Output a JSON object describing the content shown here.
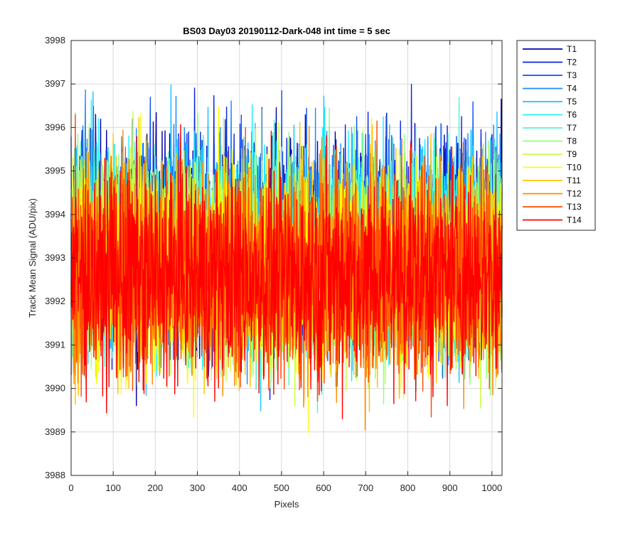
{
  "chart_data": {
    "type": "line",
    "title": "BS03 Day03 20190112-Dark-048 int time = 5 sec",
    "xlabel": "Pixels",
    "ylabel": "Track Mean Signal (ADU/pix)",
    "xlim": [
      0,
      1024
    ],
    "ylim": [
      3988,
      3998
    ],
    "xticks": [
      "0",
      "100",
      "200",
      "300",
      "400",
      "500",
      "600",
      "700",
      "800",
      "900",
      "1000"
    ],
    "yticks": [
      "3988",
      "3989",
      "3990",
      "3991",
      "3992",
      "3993",
      "3994",
      "3995",
      "3996",
      "3997",
      "3998"
    ],
    "grid": true,
    "legend_position": "outside-top-right",
    "points_per_series": 1024,
    "series": [
      {
        "name": "T1",
        "color": "#0000ad",
        "mean": 3993.4,
        "spread": 1.2
      },
      {
        "name": "T2",
        "color": "#0a24e0",
        "mean": 3993.4,
        "spread": 1.2
      },
      {
        "name": "T3",
        "color": "#1050f0",
        "mean": 3993.4,
        "spread": 1.2
      },
      {
        "name": "T4",
        "color": "#1a8cff",
        "mean": 3993.4,
        "spread": 1.2
      },
      {
        "name": "T5",
        "color": "#19c3ff",
        "mean": 3993.3,
        "spread": 1.2
      },
      {
        "name": "T6",
        "color": "#1ff0ff",
        "mean": 3993.2,
        "spread": 1.2
      },
      {
        "name": "T7",
        "color": "#5cf2c8",
        "mean": 3993.1,
        "spread": 1.2
      },
      {
        "name": "T8",
        "color": "#8fff80",
        "mean": 3993.0,
        "spread": 1.2
      },
      {
        "name": "T9",
        "color": "#c8ff3d",
        "mean": 3992.9,
        "spread": 1.2
      },
      {
        "name": "T10",
        "color": "#ffff00",
        "mean": 3992.8,
        "spread": 1.2
      },
      {
        "name": "T11",
        "color": "#ffc200",
        "mean": 3992.8,
        "spread": 1.2
      },
      {
        "name": "T12",
        "color": "#ff8a00",
        "mean": 3992.7,
        "spread": 1.2
      },
      {
        "name": "T13",
        "color": "#ff4d00",
        "mean": 3992.7,
        "spread": 1.2
      },
      {
        "name": "T14",
        "color": "#ff0000",
        "mean": 3992.6,
        "spread": 1.2
      }
    ]
  }
}
